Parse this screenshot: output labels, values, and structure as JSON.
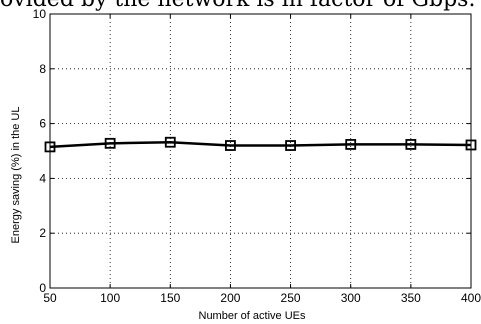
{
  "caption_text": "ovided by the network is in factor of Gbps.",
  "chart_data": {
    "type": "line",
    "xlabel": "Number of active UEs",
    "ylabel": "Energy saving (%) in the UL",
    "x": [
      50,
      100,
      150,
      200,
      250,
      300,
      350,
      400
    ],
    "series": [
      {
        "values": [
          5.15,
          5.28,
          5.32,
          5.2,
          5.2,
          5.24,
          5.24,
          5.22
        ],
        "color": "#000000",
        "marker": "square"
      }
    ],
    "xlim": [
      50,
      400
    ],
    "ylim": [
      0,
      10
    ],
    "xticks": [
      "50",
      "100",
      "150",
      "200",
      "250",
      "300",
      "350",
      "400"
    ],
    "yticks": [
      "0",
      "2",
      "4",
      "6",
      "8",
      "10"
    ],
    "grid": true
  }
}
